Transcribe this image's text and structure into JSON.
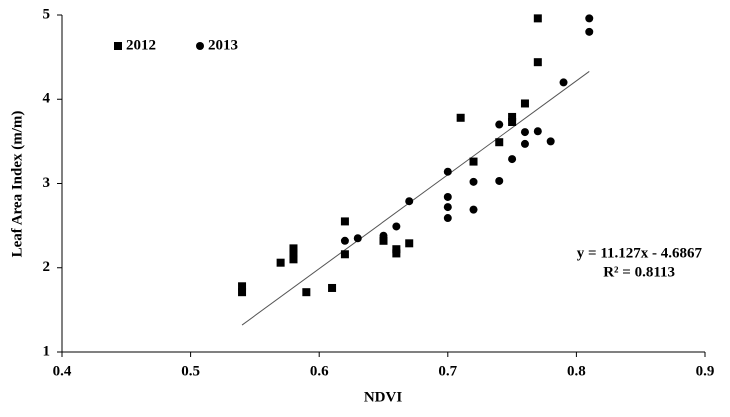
{
  "chart_data": {
    "type": "scatter",
    "x_label": "NDVI",
    "y_label": "Leaf Area Index (m/m)",
    "xlim": [
      0.4,
      0.9
    ],
    "xticks": [
      0.4,
      0.5,
      0.6,
      0.7,
      0.8,
      0.9
    ],
    "ylim": [
      1,
      5
    ],
    "yticks": [
      1,
      2,
      3,
      4,
      5
    ],
    "grid": false,
    "legend": "top-left",
    "series": [
      {
        "name": "2012",
        "marker": "square",
        "color": "#000000",
        "x": [
          0.54,
          0.54,
          0.57,
          0.58,
          0.58,
          0.58,
          0.59,
          0.61,
          0.62,
          0.62,
          0.65,
          0.66,
          0.66,
          0.67,
          0.71,
          0.72,
          0.74,
          0.75,
          0.75,
          0.76,
          0.77,
          0.77
        ],
        "values": [
          1.78,
          1.71,
          2.06,
          2.23,
          2.17,
          2.1,
          1.71,
          1.76,
          2.55,
          2.16,
          2.32,
          2.22,
          2.17,
          2.29,
          3.78,
          3.26,
          3.49,
          3.79,
          3.73,
          3.95,
          4.44,
          4.96
        ]
      },
      {
        "name": "2013",
        "marker": "circle",
        "color": "#000000",
        "x": [
          0.62,
          0.63,
          0.65,
          0.66,
          0.67,
          0.7,
          0.7,
          0.7,
          0.7,
          0.72,
          0.72,
          0.74,
          0.74,
          0.75,
          0.76,
          0.76,
          0.77,
          0.78,
          0.79,
          0.81,
          0.81
        ],
        "values": [
          2.32,
          2.35,
          2.38,
          2.49,
          2.79,
          3.14,
          2.84,
          2.72,
          2.59,
          3.02,
          2.69,
          3.7,
          3.03,
          3.29,
          3.61,
          3.47,
          3.62,
          3.5,
          4.2,
          4.96,
          4.8
        ]
      }
    ],
    "trendline": {
      "x": [
        0.54,
        0.81
      ],
      "values": [
        1.32,
        4.33
      ],
      "color": "#555555"
    },
    "annotations": [
      "y = 11.127x - 4.6867",
      "R² = 0.8113"
    ]
  }
}
